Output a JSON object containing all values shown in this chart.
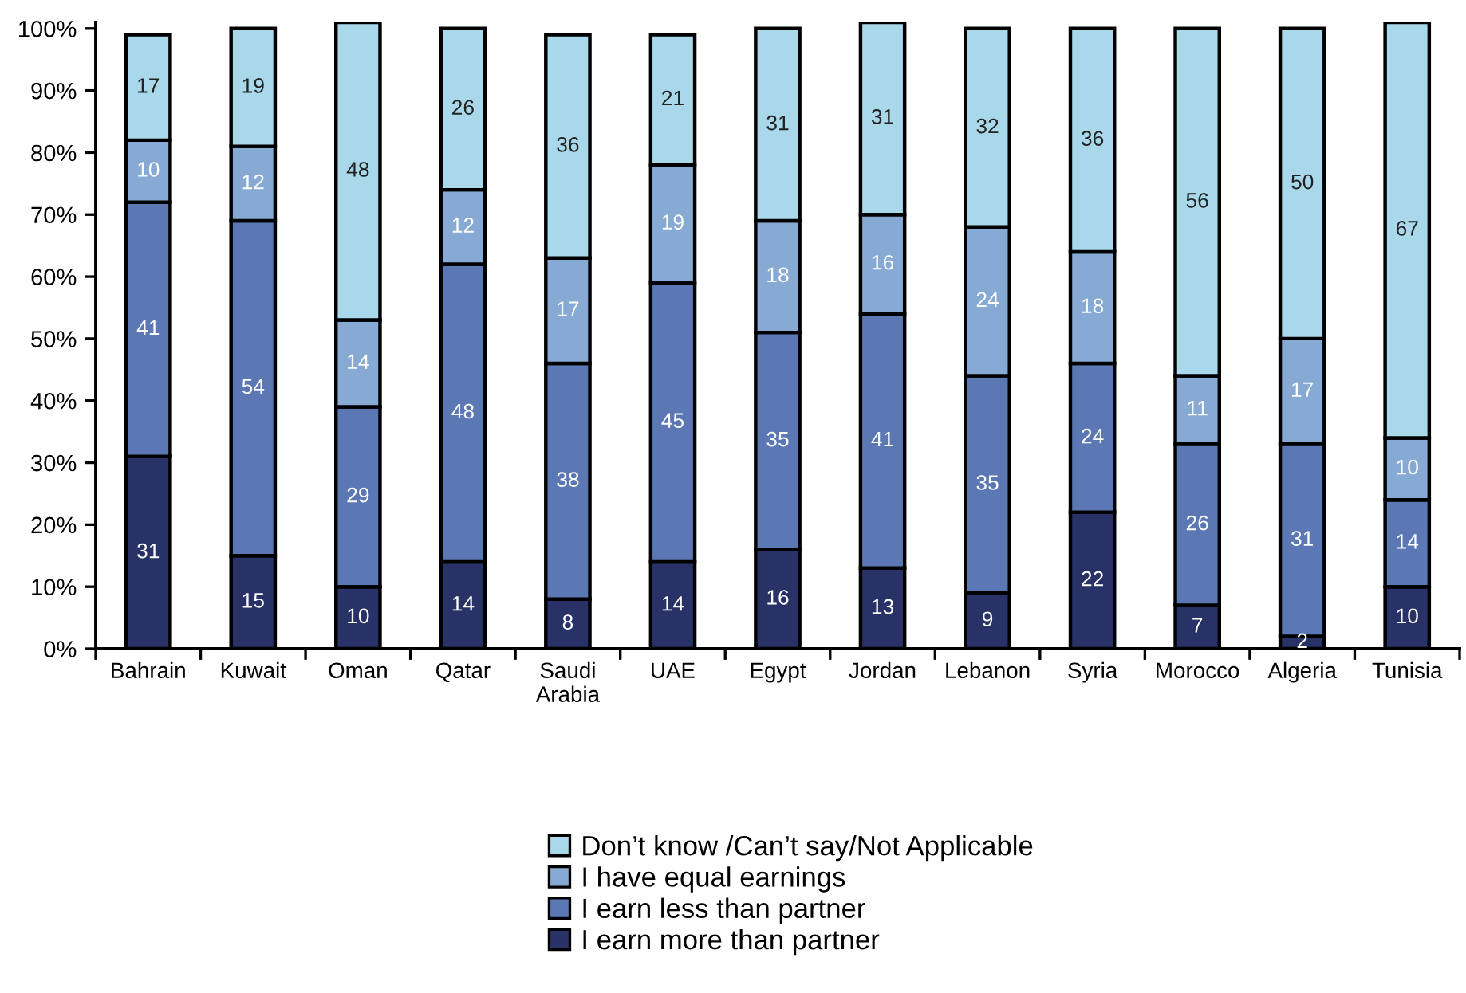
{
  "chart_data": {
    "type": "bar",
    "stacked": true,
    "categories": [
      "Bahrain",
      "Kuwait",
      "Oman",
      "Qatar",
      "Saudi\nArabia",
      "UAE",
      "Egypt",
      "Jordan",
      "Lebanon",
      "Syria",
      "Morocco",
      "Algeria",
      "Tunisia"
    ],
    "series": [
      {
        "name": "I earn more than partner",
        "color": "#283266",
        "values": [
          31,
          15,
          10,
          14,
          8,
          14,
          16,
          13,
          9,
          22,
          7,
          2,
          10
        ]
      },
      {
        "name": "I earn less than partner",
        "color": "#5b78b4",
        "values": [
          41,
          54,
          29,
          48,
          38,
          45,
          35,
          41,
          35,
          24,
          26,
          31,
          14
        ]
      },
      {
        "name": "I have equal earnings",
        "color": "#86aad3",
        "values": [
          10,
          12,
          14,
          12,
          17,
          19,
          18,
          16,
          24,
          18,
          11,
          17,
          10
        ]
      },
      {
        "name": "Don’t know /Can’t say/Not Applicable",
        "color": "#a9d8ea",
        "values": [
          17,
          19,
          48,
          26,
          36,
          21,
          31,
          31,
          32,
          36,
          56,
          50,
          67
        ]
      }
    ],
    "ylim": [
      0,
      101
    ],
    "yticks": [
      {
        "value": 0,
        "label": "0%"
      },
      {
        "value": 10,
        "label": "10%"
      },
      {
        "value": 20,
        "label": "20%"
      },
      {
        "value": 30,
        "label": "30%"
      },
      {
        "value": 40,
        "label": "40%"
      },
      {
        "value": 50,
        "label": "50%"
      },
      {
        "value": 60,
        "label": "60%"
      },
      {
        "value": 70,
        "label": "70%"
      },
      {
        "value": 80,
        "label": "80%"
      },
      {
        "value": 90,
        "label": "90%"
      },
      {
        "value": 100,
        "label": "100%"
      }
    ],
    "data_labels": true,
    "grid": false,
    "legend": "bottom"
  }
}
